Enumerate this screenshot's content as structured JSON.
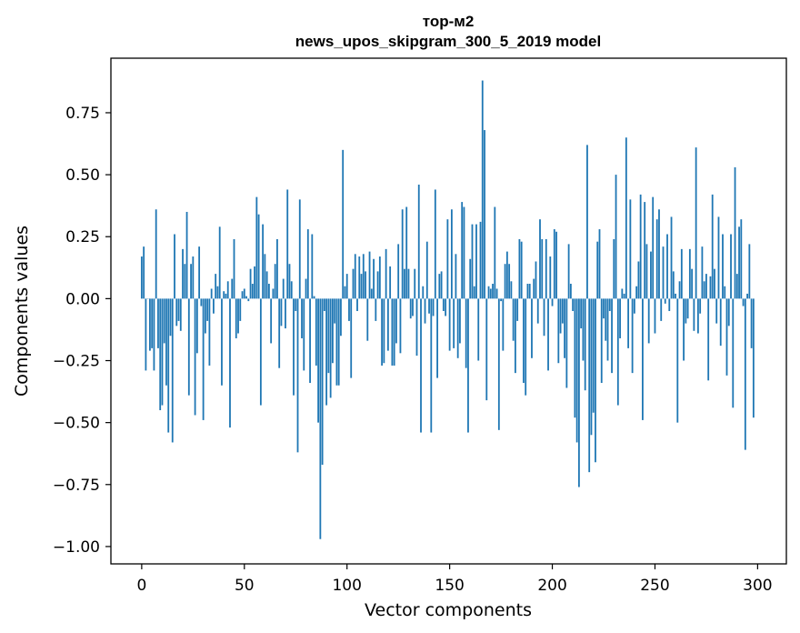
{
  "chart_data": {
    "type": "bar",
    "title": "тор-м2",
    "subtitle": "news_upos_skipgram_300_5_2019 model",
    "xlabel": "Vector components",
    "ylabel": "Components values",
    "xlim": [
      -15,
      314
    ],
    "ylim": [
      -1.07,
      0.97
    ],
    "xticks": [
      0,
      50,
      100,
      150,
      200,
      250,
      300
    ],
    "xtick_labels": [
      "0",
      "50",
      "100",
      "150",
      "200",
      "250",
      "300"
    ],
    "yticks": [
      0.75,
      0.5,
      0.25,
      0.0,
      -0.25,
      -0.5,
      -0.75,
      -1.0
    ],
    "ytick_labels": [
      "0.75",
      "0.50",
      "0.25",
      "0.00",
      "−0.25",
      "−0.50",
      "−0.75",
      "−1.00"
    ],
    "grid": false,
    "color": "#1f77b4",
    "x_start": 0,
    "values": [
      0.17,
      0.21,
      -0.29,
      0.0,
      -0.21,
      -0.2,
      -0.29,
      0.36,
      -0.2,
      -0.45,
      -0.43,
      -0.18,
      -0.35,
      -0.54,
      -0.15,
      -0.58,
      0.26,
      -0.11,
      -0.09,
      -0.13,
      0.2,
      0.14,
      0.35,
      -0.39,
      0.14,
      0.17,
      -0.47,
      -0.22,
      0.21,
      -0.03,
      -0.49,
      -0.14,
      -0.09,
      -0.27,
      0.04,
      -0.06,
      0.1,
      0.05,
      0.29,
      -0.35,
      0.03,
      0.02,
      0.07,
      -0.52,
      0.08,
      0.24,
      -0.16,
      -0.14,
      -0.09,
      0.03,
      0.04,
      0.01,
      -0.01,
      0.12,
      0.06,
      0.13,
      0.41,
      0.34,
      -0.43,
      0.3,
      0.18,
      0.11,
      0.06,
      -0.18,
      0.04,
      0.14,
      0.24,
      -0.28,
      -0.11,
      0.08,
      -0.12,
      0.44,
      0.14,
      0.07,
      -0.39,
      -0.05,
      -0.62,
      0.4,
      -0.16,
      -0.29,
      0.08,
      0.28,
      -0.34,
      0.26,
      0.01,
      -0.27,
      -0.5,
      -0.97,
      -0.67,
      -0.05,
      -0.43,
      -0.3,
      -0.4,
      -0.26,
      -0.1,
      -0.35,
      -0.35,
      -0.15,
      0.6,
      0.05,
      0.1,
      -0.09,
      -0.32,
      0.12,
      0.18,
      -0.05,
      0.17,
      0.1,
      0.18,
      0.11,
      -0.17,
      0.19,
      0.04,
      0.16,
      -0.09,
      0.11,
      0.17,
      -0.27,
      -0.26,
      0.2,
      -0.21,
      0.13,
      -0.27,
      -0.27,
      -0.18,
      0.22,
      -0.22,
      0.36,
      0.12,
      0.37,
      0.12,
      -0.08,
      -0.07,
      0.12,
      -0.23,
      0.46,
      -0.54,
      0.05,
      -0.1,
      0.23,
      -0.06,
      -0.54,
      -0.07,
      0.44,
      -0.32,
      0.1,
      0.11,
      -0.05,
      -0.07,
      0.32,
      -0.21,
      0.36,
      -0.2,
      0.18,
      -0.24,
      -0.18,
      0.39,
      0.37,
      -0.28,
      -0.54,
      0.16,
      0.3,
      0.05,
      0.3,
      -0.25,
      0.31,
      0.88,
      0.68,
      -0.41,
      0.05,
      0.04,
      0.06,
      0.37,
      0.04,
      -0.53,
      -0.01,
      -0.21,
      0.14,
      0.19,
      0.14,
      0.07,
      -0.17,
      -0.3,
      -0.09,
      0.24,
      0.23,
      -0.34,
      -0.39,
      0.06,
      0.06,
      -0.24,
      0.08,
      0.15,
      -0.1,
      0.32,
      0.24,
      -0.15,
      0.24,
      -0.29,
      0.17,
      -0.03,
      0.28,
      0.27,
      -0.26,
      -0.14,
      -0.1,
      -0.24,
      -0.36,
      0.22,
      0.06,
      -0.05,
      -0.48,
      -0.58,
      -0.76,
      -0.12,
      -0.25,
      -0.37,
      0.62,
      -0.7,
      -0.55,
      -0.46,
      -0.66,
      0.23,
      0.28,
      -0.34,
      -0.08,
      -0.17,
      -0.25,
      -0.05,
      -0.3,
      0.24,
      0.5,
      -0.43,
      -0.16,
      0.04,
      0.02,
      0.65,
      -0.2,
      0.4,
      -0.3,
      -0.06,
      0.05,
      0.15,
      0.42,
      -0.49,
      0.39,
      0.22,
      -0.18,
      0.19,
      0.41,
      -0.14,
      0.32,
      0.36,
      -0.09,
      0.21,
      -0.02,
      0.26,
      -0.05,
      0.33,
      0.11,
      0.02,
      -0.5,
      0.07,
      0.2,
      -0.25,
      -0.1,
      -0.08,
      0.2,
      0.12,
      -0.13,
      0.61,
      -0.14,
      -0.06,
      0.21,
      0.07,
      0.1,
      -0.33,
      0.09,
      0.42,
      0.12,
      -0.1,
      0.33,
      -0.19,
      0.26,
      0.05,
      -0.31,
      -0.11,
      0.26,
      -0.44,
      0.53,
      0.1,
      0.29,
      0.32,
      -0.03,
      -0.61,
      0.02,
      0.22,
      -0.2,
      -0.48
    ]
  }
}
